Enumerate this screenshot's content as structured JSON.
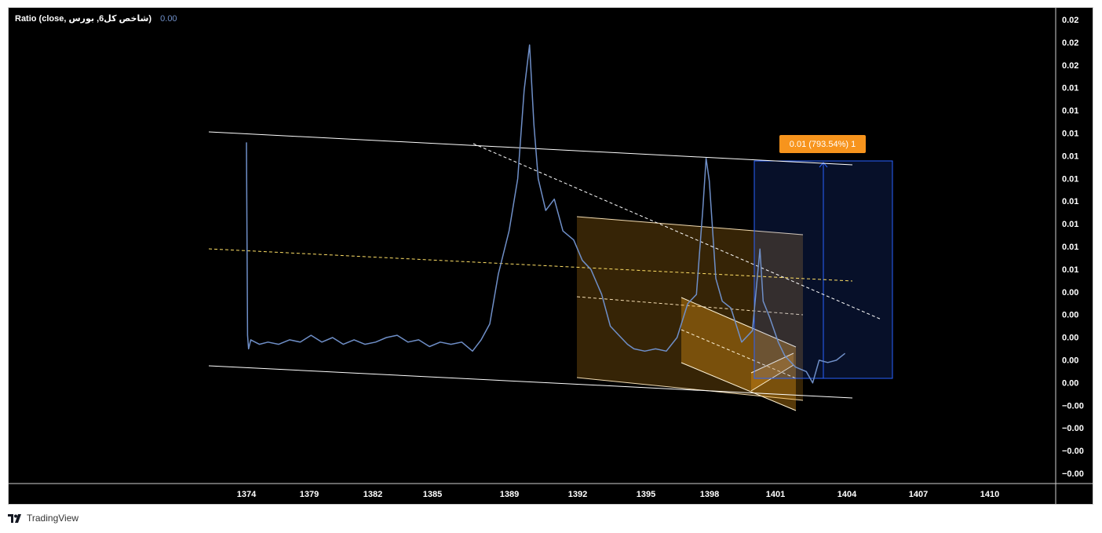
{
  "legend": {
    "label": "Ratio (close, شاخص کل6, بورس)",
    "value": "0.00"
  },
  "brand": {
    "name": "TradingView",
    "icon": "tradingview-logo-icon"
  },
  "measure_label": "0.01 (793.54%) 1",
  "colors": {
    "background": "#000000",
    "series": "#6f8fc8",
    "channel_line": "#ffffff",
    "orange_zone": "#f7a21b",
    "blue_zone": "#2962ff",
    "label_bg": "#f7941d"
  },
  "chart_data": {
    "type": "line",
    "title": "",
    "xlabel": "",
    "ylabel": "",
    "x_ticks": [
      "1374",
      "1379",
      "1382",
      "1385",
      "1389",
      "1392",
      "1395",
      "1398",
      "1401",
      "1404",
      "1407",
      "1410"
    ],
    "y_ticks": [
      "0.02",
      "0.02",
      "0.02",
      "0.01",
      "0.01",
      "0.01",
      "0.01",
      "0.01",
      "0.01",
      "0.01",
      "0.01",
      "0.01",
      "0.00",
      "0.00",
      "0.00",
      "0.00",
      "0.00",
      "−0.00",
      "−0.00",
      "−0.00",
      "−0.00"
    ],
    "xlim": [
      1371.8,
      1412
    ],
    "ylim": [
      -0.0042,
      0.0207
    ],
    "grid": false,
    "series": [
      {
        "x": [
          1374.0,
          1374.05,
          1374.1,
          1374.2,
          1374.4,
          1374.6,
          1375.0,
          1375.5,
          1376.0,
          1376.5,
          1377.0,
          1377.5,
          1378.0,
          1378.5,
          1379.0,
          1379.5,
          1380.0,
          1380.5,
          1381.0,
          1381.5,
          1382.0,
          1382.5,
          1383.0,
          1383.5,
          1384.0,
          1384.5,
          1384.9,
          1385.3,
          1385.7,
          1386.2,
          1386.6,
          1386.9,
          1387.15,
          1387.35,
          1387.55,
          1387.9,
          1388.3,
          1388.7,
          1389.2,
          1389.6,
          1390.0,
          1390.5,
          1390.9,
          1391.3,
          1391.7,
          1392.0,
          1392.5,
          1393.0,
          1393.5,
          1394.0,
          1394.5,
          1394.9,
          1395.2,
          1395.35,
          1395.5,
          1395.8,
          1396.1,
          1396.5,
          1397.0,
          1397.5,
          1397.85,
          1398.0,
          1398.3,
          1398.7,
          1399.0,
          1399.5,
          1400.0,
          1400.3,
          1400.6,
          1401.0,
          1401.4,
          1401.8
        ],
        "y": [
          0.0104,
          0.0019,
          0.0013,
          0.0017,
          0.0016,
          0.0015,
          0.0016,
          0.0015,
          0.0017,
          0.0016,
          0.0019,
          0.0016,
          0.0018,
          0.0015,
          0.0017,
          0.0015,
          0.0016,
          0.0018,
          0.0019,
          0.0016,
          0.0017,
          0.0014,
          0.0016,
          0.0015,
          0.0016,
          0.0012,
          0.0017,
          0.0024,
          0.0046,
          0.0065,
          0.0088,
          0.0127,
          0.0147,
          0.0112,
          0.0088,
          0.0074,
          0.0079,
          0.0065,
          0.0061,
          0.0052,
          0.0048,
          0.0037,
          0.0023,
          0.0019,
          0.0015,
          0.0013,
          0.0012,
          0.0013,
          0.0012,
          0.0018,
          0.0033,
          0.0037,
          0.0075,
          0.0097,
          0.0087,
          0.0044,
          0.0034,
          0.0031,
          0.0016,
          0.0021,
          0.0057,
          0.0034,
          0.0027,
          0.0016,
          0.001,
          0.0005,
          0.0003,
          -0.0002,
          0.0008,
          0.0007,
          0.0008,
          0.0011
        ]
      }
    ]
  }
}
